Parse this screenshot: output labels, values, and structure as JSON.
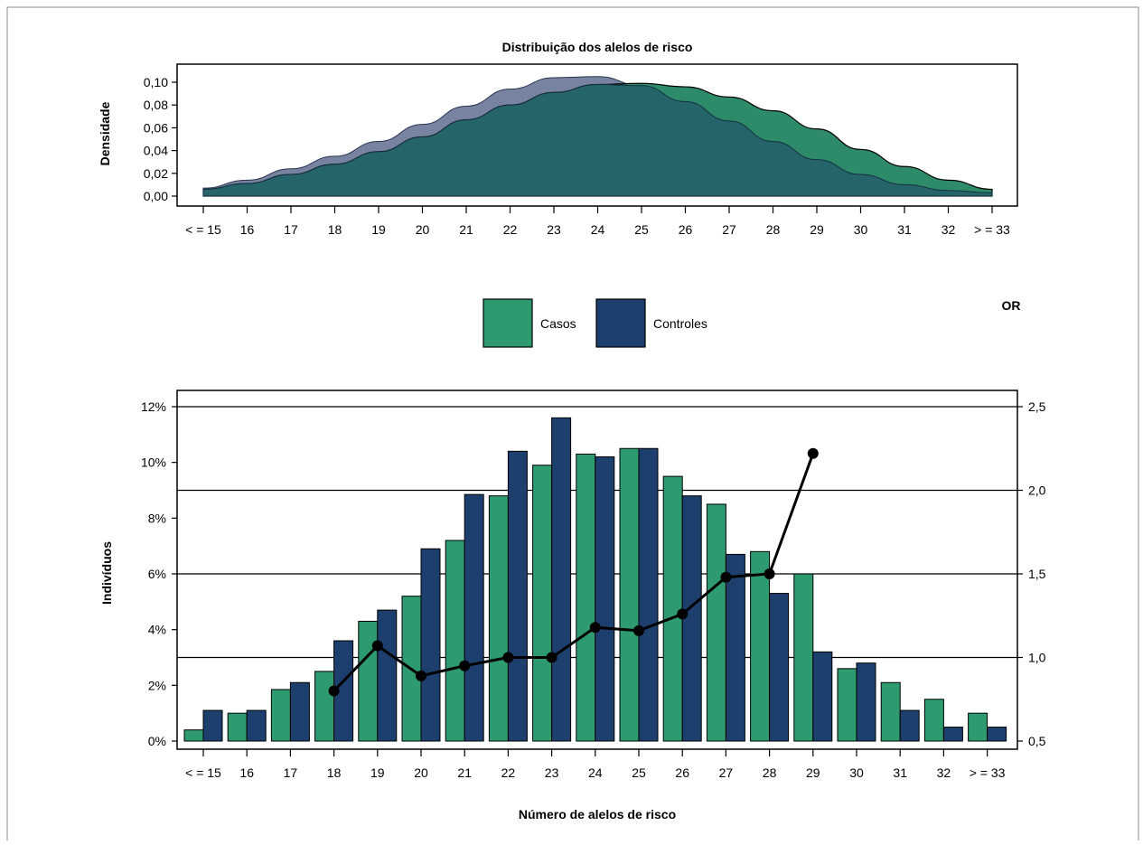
{
  "chart_data": [
    {
      "type": "area",
      "title": "Distribuição dos alelos de risco",
      "xlabel": "",
      "ylabel": "Densidade",
      "categories": [
        "< = 15",
        "16",
        "17",
        "18",
        "19",
        "20",
        "21",
        "22",
        "23",
        "24",
        "25",
        "26",
        "27",
        "28",
        "29",
        "30",
        "31",
        "32",
        "> = 33"
      ],
      "ylim": [
        0,
        0.11
      ],
      "yticks": [
        "0,00",
        "0,02",
        "0,04",
        "0,06",
        "0,08",
        "0,10"
      ],
      "yticks_values": [
        0,
        0.02,
        0.04,
        0.06,
        0.08,
        0.1
      ],
      "series": [
        {
          "name": "Casos",
          "color": "#2e8b6a",
          "values": [
            0.006,
            0.011,
            0.019,
            0.028,
            0.039,
            0.052,
            0.067,
            0.08,
            0.091,
            0.098,
            0.099,
            0.096,
            0.087,
            0.075,
            0.059,
            0.041,
            0.026,
            0.014,
            0.006
          ]
        },
        {
          "name": "Controles",
          "color": "#1c3f6e",
          "values": [
            0.007,
            0.014,
            0.024,
            0.035,
            0.048,
            0.063,
            0.079,
            0.094,
            0.104,
            0.105,
            0.097,
            0.083,
            0.066,
            0.048,
            0.032,
            0.019,
            0.01,
            0.005,
            0.003
          ]
        }
      ],
      "overlap_color": "#25656a",
      "grid": false
    },
    {
      "type": "bar",
      "title": "",
      "xlabel": "Número de alelos de risco",
      "ylabel": "Indivíduos",
      "y2label": "OR",
      "categories": [
        "< = 15",
        "16",
        "17",
        "18",
        "19",
        "20",
        "21",
        "22",
        "23",
        "24",
        "25",
        "26",
        "27",
        "28",
        "29",
        "30",
        "31",
        "32",
        "> = 33"
      ],
      "ylim": [
        0,
        12.6
      ],
      "yticks": [
        "0%",
        "2%",
        "4%",
        "6%",
        "8%",
        "10%",
        "12%"
      ],
      "yticks_values": [
        0,
        2,
        4,
        6,
        8,
        10,
        12
      ],
      "y2lim": [
        0.5,
        2.6
      ],
      "y2ticks": [
        "0,5",
        "1,0",
        "1,5",
        "2,0",
        "2,5"
      ],
      "y2ticks_values": [
        0.5,
        1.0,
        1.5,
        2.0,
        2.5
      ],
      "series": [
        {
          "name": "Casos",
          "color": "#2e9a70",
          "values": [
            0.4,
            1.0,
            1.85,
            2.5,
            4.3,
            5.2,
            7.2,
            8.8,
            9.9,
            10.3,
            10.5,
            9.5,
            8.5,
            6.8,
            6.0,
            2.6,
            2.1,
            1.5,
            1.0
          ]
        },
        {
          "name": "Controles",
          "color": "#1c3f6e",
          "values": [
            1.1,
            1.1,
            2.1,
            3.6,
            4.7,
            6.9,
            8.85,
            10.4,
            11.6,
            10.2,
            10.5,
            8.8,
            6.7,
            5.3,
            3.2,
            2.8,
            1.1,
            0.5,
            0.5
          ]
        }
      ],
      "or_series": {
        "name": "OR",
        "x": [
          "18",
          "19",
          "20",
          "21",
          "22",
          "23",
          "24",
          "25",
          "26",
          "27",
          "28",
          "29"
        ],
        "values": [
          0.8,
          1.07,
          0.89,
          0.95,
          1.0,
          1.0,
          1.18,
          1.16,
          1.26,
          1.48,
          1.5,
          2.22
        ]
      },
      "gridlines": [
        1.0,
        1.5,
        2.0,
        2.5
      ],
      "legend": {
        "position": "top",
        "entries": [
          "Casos",
          "Controles"
        ]
      }
    }
  ]
}
